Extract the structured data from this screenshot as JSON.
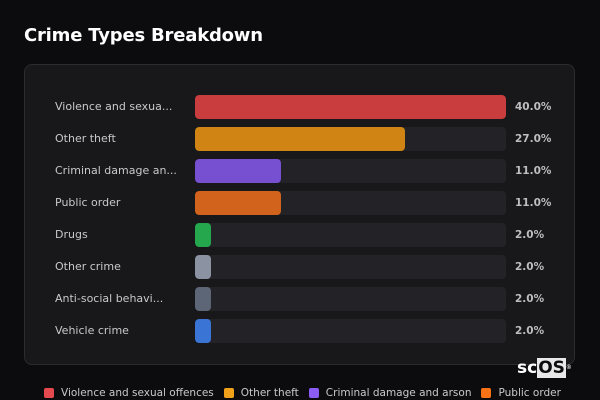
{
  "header": {
    "title": "Crime Types Breakdown"
  },
  "rows": [
    {
      "label": "Violence and sexua...",
      "pct": "40.0%",
      "value": 40,
      "color": "#c93d3f"
    },
    {
      "label": "Other theft",
      "pct": "27.0%",
      "value": 27,
      "color": "#cf8414"
    },
    {
      "label": "Criminal damage an...",
      "pct": "11.0%",
      "value": 11,
      "color": "#7650d0"
    },
    {
      "label": "Public order",
      "pct": "11.0%",
      "value": 11,
      "color": "#d2631c"
    },
    {
      "label": "Drugs",
      "pct": "2.0%",
      "value": 2,
      "color": "#25a74e"
    },
    {
      "label": "Other crime",
      "pct": "2.0%",
      "value": 2,
      "color": "#8b93a3"
    },
    {
      "label": "Anti-social behavi...",
      "pct": "2.0%",
      "value": 2,
      "color": "#5d6676"
    },
    {
      "label": "Vehicle crime",
      "pct": "2.0%",
      "value": 2,
      "color": "#3a75d6"
    }
  ],
  "legend": [
    {
      "label": "Violence and sexual offences",
      "color": "#e54a4f"
    },
    {
      "label": "Other theft",
      "color": "#f2a21a"
    },
    {
      "label": "Criminal damage and arson",
      "color": "#8b5cf6"
    },
    {
      "label": "Public order",
      "color": "#f97316"
    }
  ],
  "logo": {
    "prefix": "sc",
    "highlight": "OS",
    "mark": "®"
  },
  "chart_data": {
    "type": "bar",
    "orientation": "horizontal",
    "title": "Crime Types Breakdown",
    "categories": [
      "Violence and sexual offences",
      "Other theft",
      "Criminal damage and arson",
      "Public order",
      "Drugs",
      "Other crime",
      "Anti-social behaviour",
      "Vehicle crime"
    ],
    "values": [
      40.0,
      27.0,
      11.0,
      11.0,
      2.0,
      2.0,
      2.0,
      2.0
    ],
    "unit": "%",
    "xlabel": "",
    "ylabel": "",
    "xlim": [
      0,
      40
    ],
    "grid": false,
    "legend_position": "bottom"
  }
}
